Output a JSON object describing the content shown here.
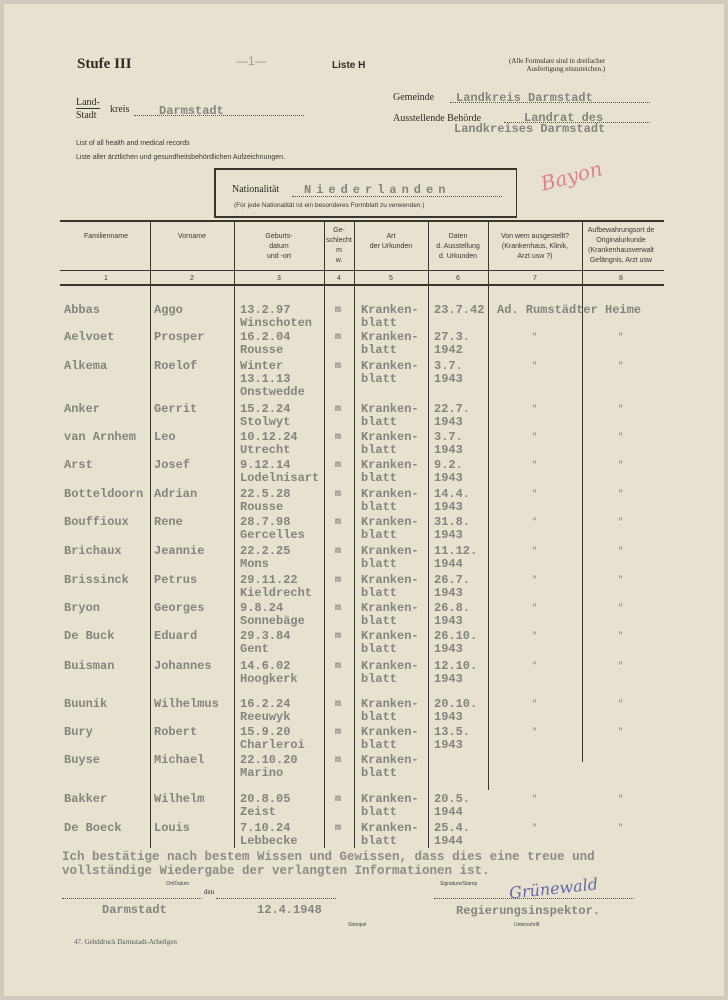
{
  "header": {
    "stufe": "Stufe III",
    "page_mark": "—1—",
    "liste": "Liste H",
    "note": [
      "(Alle Formulare sind in dreifacher",
      "Ausfertigung einzureichen.)"
    ],
    "land_label": "Land-",
    "kreis_label": "kreis",
    "stadt_label": "Stadt",
    "kreis_value": "Darmstadt",
    "gemeinde_label": "Gemeinde",
    "gemeinde_value": "Landkreis Darmstadt",
    "behoerde_label": "Ausstellende Behörde",
    "behoerde_value": [
      "Landrat des",
      "Landkreises Darmstadt"
    ],
    "subtitle_en": "List of all health and medical records",
    "subtitle_de": "Liste aller ärztlichen und gesundheitsbehördlichen Aufzeichnungen.",
    "nationality_label": "Nationalität",
    "nationality_value": "Niederlanden",
    "nationality_note": "(Für jede Nationalität ist ein besonderes Formblatt zu verwenden.)",
    "red_mark": "Bayon"
  },
  "table": {
    "columns": [
      {
        "label": "Familienname",
        "num": "1"
      },
      {
        "label": "Vorname",
        "num": "2"
      },
      {
        "label": "Geburts-\ndatum\nund -ort",
        "num": "3"
      },
      {
        "label": "Ge-\nschlecht\nm\nw.",
        "num": "4"
      },
      {
        "label": "Art\nder Urkunden",
        "num": "5"
      },
      {
        "label": "Daten\nd. Ausstellung\nd. Urkunden",
        "num": "6"
      },
      {
        "label": "Von wem ausgestellt?\n(Krankenhaus, Klinik,\nArzt usw ?)",
        "num": "7"
      },
      {
        "label": "Aufbewahrungsort de\nOriginalurkunde\n(Krankenhausverwalt\nGefängnis, Arzt usw",
        "num": "8"
      }
    ],
    "ditto": "\"",
    "rows": [
      {
        "name": "Abbas",
        "first": "Aggo",
        "birth": [
          "13.2.97",
          "Winschoten"
        ],
        "sex": "m",
        "art": [
          "Kranken-",
          "blatt"
        ],
        "date": [
          "23.7.42"
        ],
        "issuer": "Ad. Rumstädter Heime"
      },
      {
        "name": "Aelvoet",
        "first": "Prosper",
        "birth": [
          "16.2.04",
          "Rousse"
        ],
        "sex": "m",
        "art": [
          "Kranken-",
          "blatt"
        ],
        "date": [
          "27.3.",
          "1942"
        ]
      },
      {
        "name": "Alkema",
        "first": "Roelof",
        "birth": [
          "Winter",
          "13.1.13",
          "Onstwedde"
        ],
        "sex": "m",
        "art": [
          "Kranken-",
          "blatt"
        ],
        "date": [
          "3.7.",
          "1943"
        ]
      },
      {
        "name": "Anker",
        "first": "Gerrit",
        "birth": [
          "15.2.24",
          "Stolwyt"
        ],
        "sex": "m",
        "art": [
          "Kranken-",
          "blatt"
        ],
        "date": [
          "22.7.",
          "1943"
        ]
      },
      {
        "name": "van Arnhem",
        "first": "Leo",
        "birth": [
          "10.12.24",
          "Utrecht"
        ],
        "sex": "m",
        "art": [
          "Kranken-",
          "blatt"
        ],
        "date": [
          "3.7.",
          "1943"
        ]
      },
      {
        "name": "Arst",
        "first": "Josef",
        "birth": [
          "9.12.14",
          "Lodelnisart"
        ],
        "sex": "m",
        "art": [
          "Kranken-",
          "blatt"
        ],
        "date": [
          "9.2.",
          "1943"
        ]
      },
      {
        "name": "Botteldoorn",
        "first": "Adrian",
        "birth": [
          "22.5.28",
          "Rousse"
        ],
        "sex": "m",
        "art": [
          "Kranken-",
          "blatt"
        ],
        "date": [
          "14.4.",
          "1943"
        ]
      },
      {
        "name": "Bouffioux",
        "first": "Rene",
        "birth": [
          "28.7.98",
          "Gercelles"
        ],
        "sex": "m",
        "art": [
          "Kranken-",
          "blatt"
        ],
        "date": [
          "31.8.",
          "1943"
        ]
      },
      {
        "name": "Brichaux",
        "first": "Jeannie",
        "birth": [
          "22.2.25",
          "Mons"
        ],
        "sex": "m",
        "art": [
          "Kranken-",
          "blatt"
        ],
        "date": [
          "11.12.",
          "1944"
        ]
      },
      {
        "name": "Brissinck",
        "first": "Petrus",
        "birth": [
          "29.11.22",
          "Kieldrecht"
        ],
        "sex": "m",
        "art": [
          "Kranken-",
          "blatt"
        ],
        "date": [
          "26.7.",
          "1943"
        ]
      },
      {
        "name": "Bryon",
        "first": "Georges",
        "birth": [
          "9.8.24",
          "Sonnebäge"
        ],
        "sex": "m",
        "art": [
          "Kranken-",
          "blatt"
        ],
        "date": [
          "26.8.",
          "1943"
        ]
      },
      {
        "name": "De Buck",
        "first": "Eduard",
        "birth": [
          "29.3.84",
          "Gent"
        ],
        "sex": "m",
        "art": [
          "Kranken-",
          "blatt"
        ],
        "date": [
          "26.10.",
          "1943"
        ]
      },
      {
        "name": "Buisman",
        "first": "Johannes",
        "birth": [
          "14.6.02",
          "Hoogkerk"
        ],
        "sex": "m",
        "art": [
          "Kranken-",
          "blatt"
        ],
        "date": [
          "12.10.",
          "1943"
        ]
      },
      {
        "name": "Buunik",
        "first": "Wilhelmus",
        "birth": [
          "16.2.24",
          "Reeuwyk"
        ],
        "sex": "m",
        "art": [
          "Kranken-",
          "blatt"
        ],
        "date": [
          "20.10.",
          "1943"
        ]
      },
      {
        "name": "Bury",
        "first": "Robert",
        "birth": [
          "15.9.20",
          "Charleroi"
        ],
        "sex": "m",
        "art": [
          "Kranken-",
          "blatt"
        ],
        "date": [
          "13.5.",
          "1943"
        ]
      },
      {
        "name": "Buyse",
        "first": "Michael",
        "birth": [
          "22.10.20",
          "Marino"
        ],
        "sex": "m",
        "art": [
          "Kranken-",
          "blatt"
        ],
        "date": [],
        "noditto": true
      },
      {
        "name": "Bakker",
        "first": "Wilhelm",
        "birth": [
          "20.8.05",
          "Zeist"
        ],
        "sex": "m",
        "art": [
          "Kranken-",
          "blatt"
        ],
        "date": [
          "20.5.",
          "1944"
        ]
      },
      {
        "name": "De Boeck",
        "first": "Louis",
        "birth": [
          "7.10.24",
          "Lebbecke"
        ],
        "sex": "m",
        "art": [
          "Kranken-",
          "blatt"
        ],
        "date": [
          "25.4.",
          "1944"
        ]
      }
    ]
  },
  "footer": {
    "statement": [
      "Ich bestätige nach bestem Wissen und Gewissen, dass dies eine treue und",
      "vollständige Wiedergabe der verlangten Informationen ist."
    ],
    "ort_label": "Ort/Datum",
    "signature_label": "Signature/Stamp",
    "den_label": "den",
    "place": "Darmstadt",
    "date": "12.4.1948",
    "stempel_label": "Stempel",
    "unterschrift_label": "Unterschrift",
    "signature": "Grünewald",
    "title": "Regierungsinspektor.",
    "printer": "47. Gebddruck Darmstadt-Arheilgen"
  }
}
